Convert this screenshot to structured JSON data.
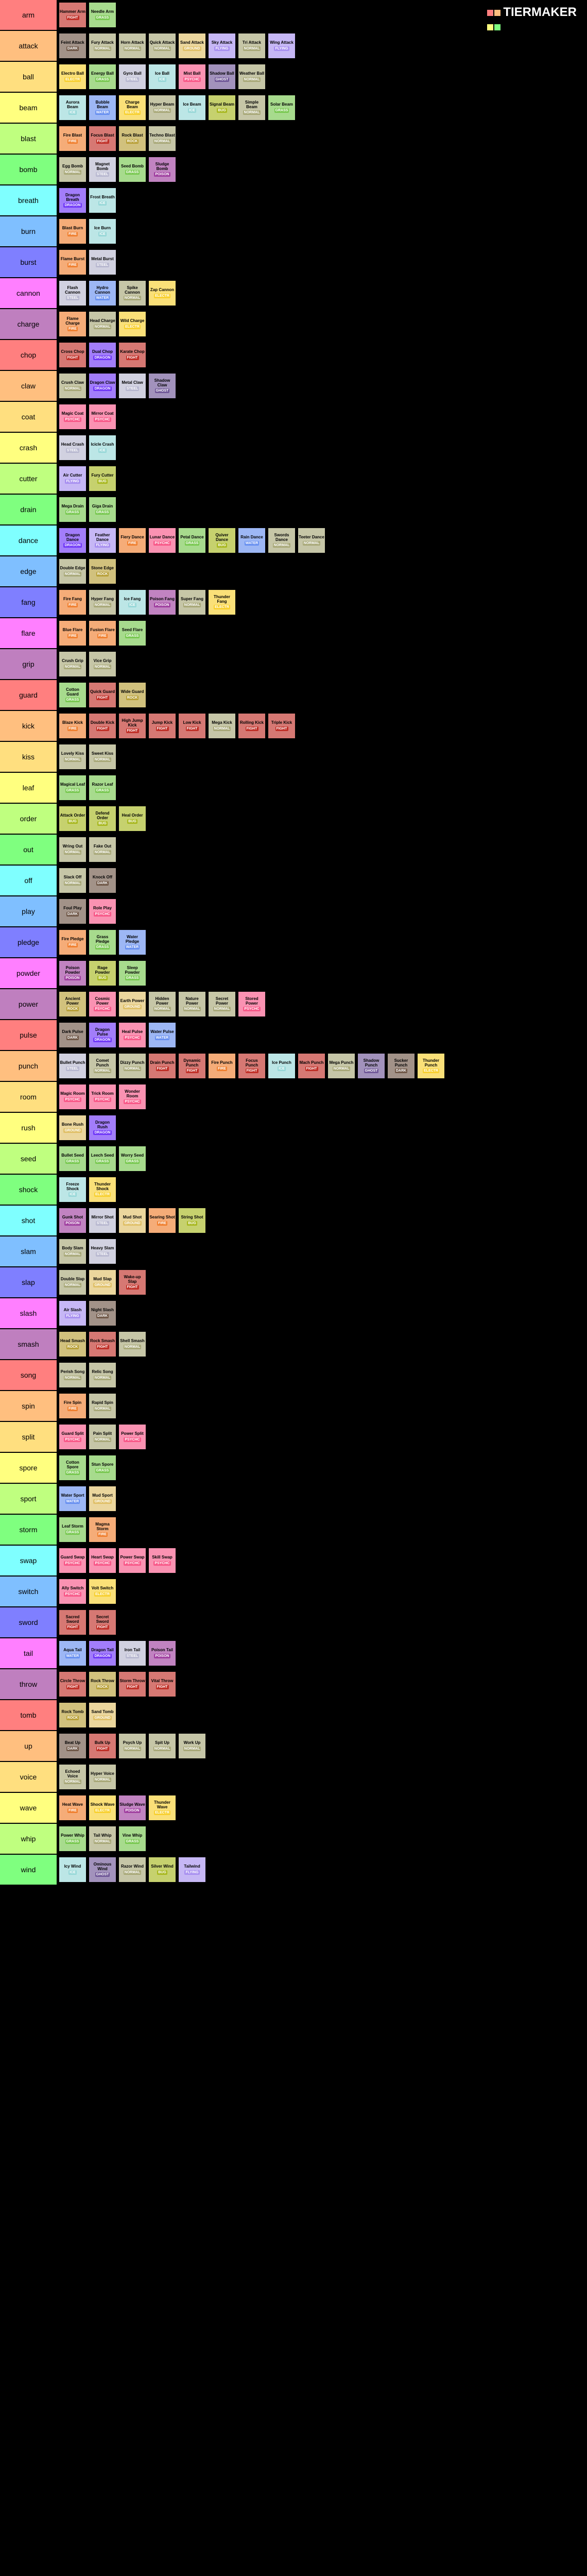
{
  "logo": "TIERMAKER",
  "typeColors": {
    "NORMAL": "#a8a878",
    "FIRE": "#f08030",
    "WATER": "#6890f0",
    "GRASS": "#78c850",
    "ELECTR": "#f8d030",
    "ICE": "#98d8d8",
    "FIGHT": "#c03028",
    "POISON": "#a040a0",
    "GROUND": "#e0c068",
    "FLYING": "#a890f0",
    "PSYCHC": "#f85888",
    "BUG": "#a8b820",
    "ROCK": "#b8a038",
    "GHOST": "#705898",
    "DRAGON": "#7038f8",
    "DARK": "#705848",
    "STEEL": "#b8b8d0",
    "FAIRY": "#ee99ac"
  },
  "itemBg": {
    "NORMAL": "#c6c6a7",
    "FIRE": "#f5ac78",
    "WATER": "#9db7f5",
    "GRASS": "#a7db8d",
    "ELECTR": "#fae078",
    "ICE": "#bce6e6",
    "FIGHT": "#d67873",
    "POISON": "#c183c1",
    "GROUND": "#ebd69d",
    "FLYING": "#c6b7f5",
    "PSYCHC": "#fa92b2",
    "BUG": "#c6d16e",
    "ROCK": "#d1c17d",
    "GHOST": "#a292bc",
    "DRAGON": "#a27dfa",
    "DARK": "#a29288",
    "STEEL": "#d1d1e0",
    "FAIRY": "#f4bdc9"
  },
  "rows": [
    {
      "c": "#ff7f7f",
      "l": "arm",
      "i": [
        [
          "Hammer Arm",
          "FIGHT"
        ],
        [
          "Needle Arm",
          "GRASS"
        ]
      ]
    },
    {
      "c": "#ffbf7f",
      "l": "attack",
      "i": [
        [
          "Feint Attack",
          "DARK"
        ],
        [
          "Fury Attack",
          "NORMAL"
        ],
        [
          "Horn Attack",
          "NORMAL"
        ],
        [
          "Quick Attack",
          "NORMAL"
        ],
        [
          "Sand Attack",
          "GROUND"
        ],
        [
          "Sky Attack",
          "FLYING"
        ],
        [
          "Tri Attack",
          "NORMAL"
        ],
        [
          "Wing Attack",
          "FLYING"
        ]
      ]
    },
    {
      "c": "#ffdf7f",
      "l": "ball",
      "i": [
        [
          "Electro Ball",
          "ELECTR"
        ],
        [
          "Energy Ball",
          "GRASS"
        ],
        [
          "Gyro Ball",
          "STEEL"
        ],
        [
          "Ice Ball",
          "ICE"
        ],
        [
          "Mist Ball",
          "PSYCHC"
        ],
        [
          "Shadow Ball",
          "GHOST"
        ],
        [
          "Weather Ball",
          "NORMAL"
        ]
      ]
    },
    {
      "c": "#ffff7f",
      "l": "beam",
      "i": [
        [
          "Aurora Beam",
          "ICE"
        ],
        [
          "Bubble Beam",
          "WATER"
        ],
        [
          "Charge Beam",
          "ELECTR"
        ],
        [
          "Hyper Beam",
          "NORMAL"
        ],
        [
          "Ice Beam",
          "ICE"
        ],
        [
          "Signal Beam",
          "BUG"
        ],
        [
          "Simple Beam",
          "NORMAL"
        ],
        [
          "Solar Beam",
          "GRASS"
        ]
      ]
    },
    {
      "c": "#bfff7f",
      "l": "blast",
      "i": [
        [
          "Fire Blast",
          "FIRE"
        ],
        [
          "Focus Blast",
          "FIGHT"
        ],
        [
          "Rock Blast",
          "ROCK"
        ],
        [
          "Techno Blast",
          "NORMAL"
        ]
      ]
    },
    {
      "c": "#7fff7f",
      "l": "bomb",
      "i": [
        [
          "Egg Bomb",
          "NORMAL"
        ],
        [
          "Magnet Bomb",
          "STEEL"
        ],
        [
          "Seed Bomb",
          "GRASS"
        ],
        [
          "Sludge Bomb",
          "POISON"
        ]
      ]
    },
    {
      "c": "#7fffff",
      "l": "breath",
      "i": [
        [
          "Dragon Breath",
          "DRAGON"
        ],
        [
          "Frost Breath",
          "ICE"
        ]
      ]
    },
    {
      "c": "#7fbfff",
      "l": "burn",
      "i": [
        [
          "Blast Burn",
          "FIRE"
        ],
        [
          "Ice Burn",
          "ICE"
        ]
      ]
    },
    {
      "c": "#7f7fff",
      "l": "burst",
      "i": [
        [
          "Flame Burst",
          "FIRE"
        ],
        [
          "Metal Burst",
          "STEEL"
        ]
      ]
    },
    {
      "c": "#ff7fff",
      "l": "cannon",
      "i": [
        [
          "Flash Cannon",
          "STEEL"
        ],
        [
          "Hydro Cannon",
          "WATER"
        ],
        [
          "Spike Cannon",
          "NORMAL"
        ],
        [
          "Zap Cannon",
          "ELECTR"
        ]
      ]
    },
    {
      "c": "#bf7fbf",
      "l": "charge",
      "i": [
        [
          "Flame Charge",
          "FIRE"
        ],
        [
          "Head Charge",
          "NORMAL"
        ],
        [
          "Wild Charge",
          "ELECTR"
        ]
      ]
    },
    {
      "c": "#ff7f7f",
      "l": "chop",
      "i": [
        [
          "Cross Chop",
          "FIGHT"
        ],
        [
          "Dual Chop",
          "DRAGON"
        ],
        [
          "Karate Chop",
          "FIGHT"
        ]
      ]
    },
    {
      "c": "#ffbf7f",
      "l": "claw",
      "i": [
        [
          "Crush Claw",
          "NORMAL"
        ],
        [
          "Dragon Claw",
          "DRAGON"
        ],
        [
          "Metal Claw",
          "STEEL"
        ],
        [
          "Shadow Claw",
          "GHOST"
        ]
      ]
    },
    {
      "c": "#ffdf7f",
      "l": "coat",
      "i": [
        [
          "Magic Coat",
          "PSYCHC"
        ],
        [
          "Mirror Coat",
          "PSYCHC"
        ]
      ]
    },
    {
      "c": "#ffff7f",
      "l": "crash",
      "i": [
        [
          "Head Crash",
          "STEEL"
        ],
        [
          "Icicle Crash",
          "ICE"
        ]
      ]
    },
    {
      "c": "#bfff7f",
      "l": "cutter",
      "i": [
        [
          "Air Cutter",
          "FLYING"
        ],
        [
          "Fury Cutter",
          "BUG"
        ]
      ]
    },
    {
      "c": "#7fff7f",
      "l": "drain",
      "i": [
        [
          "Mega Drain",
          "GRASS"
        ],
        [
          "Giga Drain",
          "GRASS"
        ]
      ]
    },
    {
      "c": "#7fffff",
      "l": "dance",
      "i": [
        [
          "Dragon Dance",
          "DRAGON"
        ],
        [
          "Feather Dance",
          "FLYING"
        ],
        [
          "Fiery Dance",
          "FIRE"
        ],
        [
          "Lunar Dance",
          "PSYCHC"
        ],
        [
          "Petal Dance",
          "GRASS"
        ],
        [
          "Quiver Dance",
          "BUG"
        ],
        [
          "Rain Dance",
          "WATER"
        ],
        [
          "Swords Dance",
          "NORMAL"
        ],
        [
          "Teeter Dance",
          "NORMAL"
        ]
      ]
    },
    {
      "c": "#7fbfff",
      "l": "edge",
      "i": [
        [
          "Double Edge",
          "NORMAL"
        ],
        [
          "Stone Edge",
          "ROCK"
        ]
      ]
    },
    {
      "c": "#7f7fff",
      "l": "fang",
      "i": [
        [
          "Fire Fang",
          "FIRE"
        ],
        [
          "Hyper Fang",
          "NORMAL"
        ],
        [
          "Ice Fang",
          "ICE"
        ],
        [
          "Poison Fang",
          "POISON"
        ],
        [
          "Super Fang",
          "NORMAL"
        ],
        [
          "Thunder Fang",
          "ELECTR"
        ]
      ]
    },
    {
      "c": "#ff7fff",
      "l": "flare",
      "i": [
        [
          "Blue Flare",
          "FIRE"
        ],
        [
          "Fusion Flare",
          "FIRE"
        ],
        [
          "Seed Flare",
          "GRASS"
        ]
      ]
    },
    {
      "c": "#bf7fbf",
      "l": "grip",
      "i": [
        [
          "Crush Grip",
          "NORMAL"
        ],
        [
          "Vice Grip",
          "NORMAL"
        ]
      ]
    },
    {
      "c": "#ff7f7f",
      "l": "guard",
      "i": [
        [
          "Cotton Guard",
          "GRASS"
        ],
        [
          "Quick Guard",
          "FIGHT"
        ],
        [
          "Wide Guard",
          "ROCK"
        ]
      ]
    },
    {
      "c": "#ffbf7f",
      "l": "kick",
      "i": [
        [
          "Blaze Kick",
          "FIRE"
        ],
        [
          "Double Kick",
          "FIGHT"
        ],
        [
          "High Jump Kick",
          "FIGHT"
        ],
        [
          "Jump Kick",
          "FIGHT"
        ],
        [
          "Low Kick",
          "FIGHT"
        ],
        [
          "Mega Kick",
          "NORMAL"
        ],
        [
          "Rolling Kick",
          "FIGHT"
        ],
        [
          "Triple Kick",
          "FIGHT"
        ]
      ]
    },
    {
      "c": "#ffdf7f",
      "l": "kiss",
      "i": [
        [
          "Lovely Kiss",
          "NORMAL"
        ],
        [
          "Sweet Kiss",
          "NORMAL"
        ]
      ]
    },
    {
      "c": "#ffff7f",
      "l": "leaf",
      "i": [
        [
          "Magical Leaf",
          "GRASS"
        ],
        [
          "Razor Leaf",
          "GRASS"
        ]
      ]
    },
    {
      "c": "#bfff7f",
      "l": "order",
      "i": [
        [
          "Attack Order",
          "BUG"
        ],
        [
          "Defend Order",
          "BUG"
        ],
        [
          "Heal Order",
          "BUG"
        ]
      ]
    },
    {
      "c": "#7fff7f",
      "l": "out",
      "i": [
        [
          "Wring Out",
          "NORMAL"
        ],
        [
          "Fake Out",
          "NORMAL"
        ]
      ]
    },
    {
      "c": "#7fffff",
      "l": "off",
      "i": [
        [
          "Slack Off",
          "NORMAL"
        ],
        [
          "Knock Off",
          "DARK"
        ]
      ]
    },
    {
      "c": "#7fbfff",
      "l": "play",
      "i": [
        [
          "Foul Play",
          "DARK"
        ],
        [
          "Role Play",
          "PSYCHC"
        ]
      ]
    },
    {
      "c": "#7f7fff",
      "l": "pledge",
      "i": [
        [
          "Fire Pledge",
          "FIRE"
        ],
        [
          "Grass Pledge",
          "GRASS"
        ],
        [
          "Water Pledge",
          "WATER"
        ]
      ]
    },
    {
      "c": "#ff7fff",
      "l": "powder",
      "i": [
        [
          "Poison Powder",
          "POISON"
        ],
        [
          "Rage Powder",
          "BUG"
        ],
        [
          "Sleep Powder",
          "GRASS"
        ]
      ]
    },
    {
      "c": "#bf7fbf",
      "l": "power",
      "i": [
        [
          "Ancient Power",
          "ROCK"
        ],
        [
          "Cosmic Power",
          "PSYCHC"
        ],
        [
          "Earth Power",
          "GROUND"
        ],
        [
          "Hidden Power",
          "NORMAL"
        ],
        [
          "Nature Power",
          "NORMAL"
        ],
        [
          "Secret Power",
          "NORMAL"
        ],
        [
          "Stored Power",
          "PSYCHC"
        ]
      ]
    },
    {
      "c": "#ff7f7f",
      "l": "pulse",
      "i": [
        [
          "Dark Pulse",
          "DARK"
        ],
        [
          "Dragon Pulse",
          "DRAGON"
        ],
        [
          "Heal Pulse",
          "PSYCHC"
        ],
        [
          "Water Pulse",
          "WATER"
        ]
      ]
    },
    {
      "c": "#ffbf7f",
      "l": "punch",
      "i": [
        [
          "Bullet Punch",
          "STEEL"
        ],
        [
          "Comet Punch",
          "NORMAL"
        ],
        [
          "Dizzy Punch",
          "NORMAL"
        ],
        [
          "Drain Punch",
          "FIGHT"
        ],
        [
          "Dynamic Punch",
          "FIGHT"
        ],
        [
          "Fire Punch",
          "FIRE"
        ],
        [
          "Focus Punch",
          "FIGHT"
        ],
        [
          "Ice Punch",
          "ICE"
        ],
        [
          "Mach Punch",
          "FIGHT"
        ],
        [
          "Mega Punch",
          "NORMAL"
        ],
        [
          "Shadow Punch",
          "GHOST"
        ],
        [
          "Sucker Punch",
          "DARK"
        ],
        [
          "Thunder Punch",
          "ELECTR"
        ]
      ]
    },
    {
      "c": "#ffdf7f",
      "l": "room",
      "i": [
        [
          "Magic Room",
          "PSYCHC"
        ],
        [
          "Trick Room",
          "PSYCHC"
        ],
        [
          "Wonder Room",
          "PSYCHC"
        ]
      ]
    },
    {
      "c": "#ffff7f",
      "l": "rush",
      "i": [
        [
          "Bone Rush",
          "GROUND"
        ],
        [
          "Dragon Rush",
          "DRAGON"
        ]
      ]
    },
    {
      "c": "#bfff7f",
      "l": "seed",
      "i": [
        [
          "Bullet Seed",
          "GRASS"
        ],
        [
          "Leech Seed",
          "GRASS"
        ],
        [
          "Worry Seed",
          "GRASS"
        ]
      ]
    },
    {
      "c": "#7fff7f",
      "l": "shock",
      "i": [
        [
          "Freeze Shock",
          "ICE"
        ],
        [
          "Thunder Shock",
          "ELECTR"
        ]
      ]
    },
    {
      "c": "#7fffff",
      "l": "shot",
      "i": [
        [
          "Gunk Shot",
          "POISON"
        ],
        [
          "Mirror Shot",
          "STEEL"
        ],
        [
          "Mud Shot",
          "GROUND"
        ],
        [
          "Searing Shot",
          "FIRE"
        ],
        [
          "String Shot",
          "BUG"
        ]
      ]
    },
    {
      "c": "#7fbfff",
      "l": "slam",
      "i": [
        [
          "Body Slam",
          "NORMAL"
        ],
        [
          "Heavy Slam",
          "STEEL"
        ]
      ]
    },
    {
      "c": "#7f7fff",
      "l": "slap",
      "i": [
        [
          "Double Slap",
          "NORMAL"
        ],
        [
          "Mud Slap",
          "GROUND"
        ],
        [
          "Wake-up Slap",
          "FIGHT"
        ]
      ]
    },
    {
      "c": "#ff7fff",
      "l": "slash",
      "i": [
        [
          "Air Slash",
          "FLYING"
        ],
        [
          "Night Slash",
          "DARK"
        ]
      ]
    },
    {
      "c": "#bf7fbf",
      "l": "smash",
      "i": [
        [
          "Head Smash",
          "ROCK"
        ],
        [
          "Rock Smash",
          "FIGHT"
        ],
        [
          "Shell Smash",
          "NORMAL"
        ]
      ]
    },
    {
      "c": "#ff7f7f",
      "l": "song",
      "i": [
        [
          "Perish Song",
          "NORMAL"
        ],
        [
          "Relic Song",
          "NORMAL"
        ]
      ]
    },
    {
      "c": "#ffbf7f",
      "l": "spin",
      "i": [
        [
          "Fire Spin",
          "FIRE"
        ],
        [
          "Rapid Spin",
          "NORMAL"
        ]
      ]
    },
    {
      "c": "#ffdf7f",
      "l": "split",
      "i": [
        [
          "Guard Split",
          "PSYCHC"
        ],
        [
          "Pain Split",
          "NORMAL"
        ],
        [
          "Power Split",
          "PSYCHC"
        ]
      ]
    },
    {
      "c": "#ffff7f",
      "l": "spore",
      "i": [
        [
          "Cotton Spore",
          "GRASS"
        ],
        [
          "Stun Spore",
          "GRASS"
        ]
      ]
    },
    {
      "c": "#bfff7f",
      "l": "sport",
      "i": [
        [
          "Water Sport",
          "WATER"
        ],
        [
          "Mud Sport",
          "GROUND"
        ]
      ]
    },
    {
      "c": "#7fff7f",
      "l": "storm",
      "i": [
        [
          "Leaf Storm",
          "GRASS"
        ],
        [
          "Magma Storm",
          "FIRE"
        ]
      ]
    },
    {
      "c": "#7fffff",
      "l": "swap",
      "i": [
        [
          "Guard Swap",
          "PSYCHC"
        ],
        [
          "Heart Swap",
          "PSYCHC"
        ],
        [
          "Power Swap",
          "PSYCHC"
        ],
        [
          "Skill Swap",
          "PSYCHC"
        ]
      ]
    },
    {
      "c": "#7fbfff",
      "l": "switch",
      "i": [
        [
          "Ally Switch",
          "PSYCHC"
        ],
        [
          "Volt Switch",
          "ELECTR"
        ]
      ]
    },
    {
      "c": "#7f7fff",
      "l": "sword",
      "i": [
        [
          "Sacred Sword",
          "FIGHT"
        ],
        [
          "Secret Sword",
          "FIGHT"
        ]
      ]
    },
    {
      "c": "#ff7fff",
      "l": "tail",
      "i": [
        [
          "Aqua Tail",
          "WATER"
        ],
        [
          "Dragon Tail",
          "DRAGON"
        ],
        [
          "Iron Tail",
          "STEEL"
        ],
        [
          "Poison Tail",
          "POISON"
        ]
      ]
    },
    {
      "c": "#bf7fbf",
      "l": "throw",
      "i": [
        [
          "Circle Throw",
          "FIGHT"
        ],
        [
          "Rock Throw",
          "ROCK"
        ],
        [
          "Storm Throw",
          "FIGHT"
        ],
        [
          "Vital Throw",
          "FIGHT"
        ]
      ]
    },
    {
      "c": "#ff7f7f",
      "l": "tomb",
      "i": [
        [
          "Rock Tomb",
          "ROCK"
        ],
        [
          "Sand Tomb",
          "GROUND"
        ]
      ]
    },
    {
      "c": "#ffbf7f",
      "l": "up",
      "i": [
        [
          "Beat Up",
          "DARK"
        ],
        [
          "Bulk Up",
          "FIGHT"
        ],
        [
          "Psych Up",
          "NORMAL"
        ],
        [
          "Spit Up",
          "NORMAL"
        ],
        [
          "Work Up",
          "NORMAL"
        ]
      ]
    },
    {
      "c": "#ffdf7f",
      "l": "voice",
      "i": [
        [
          "Echoed Voice",
          "NORMAL"
        ],
        [
          "Hyper Voice",
          "NORMAL"
        ]
      ]
    },
    {
      "c": "#ffff7f",
      "l": "wave",
      "i": [
        [
          "Heat Wave",
          "FIRE"
        ],
        [
          "Shock Wave",
          "ELECTR"
        ],
        [
          "Sludge Wave",
          "POISON"
        ],
        [
          "Thunder Wave",
          "ELECTR"
        ]
      ]
    },
    {
      "c": "#bfff7f",
      "l": "whip",
      "i": [
        [
          "Power Whip",
          "GRASS"
        ],
        [
          "Tail Whip",
          "NORMAL"
        ],
        [
          "Vine Whip",
          "GRASS"
        ]
      ]
    },
    {
      "c": "#7fff7f",
      "l": "wind",
      "i": [
        [
          "Icy Wind",
          "ICE"
        ],
        [
          "Ominous Wind",
          "GHOST"
        ],
        [
          "Razor Wind",
          "NORMAL"
        ],
        [
          "Silver Wind",
          "BUG"
        ],
        [
          "Tailwind",
          "FLYING"
        ]
      ]
    }
  ]
}
